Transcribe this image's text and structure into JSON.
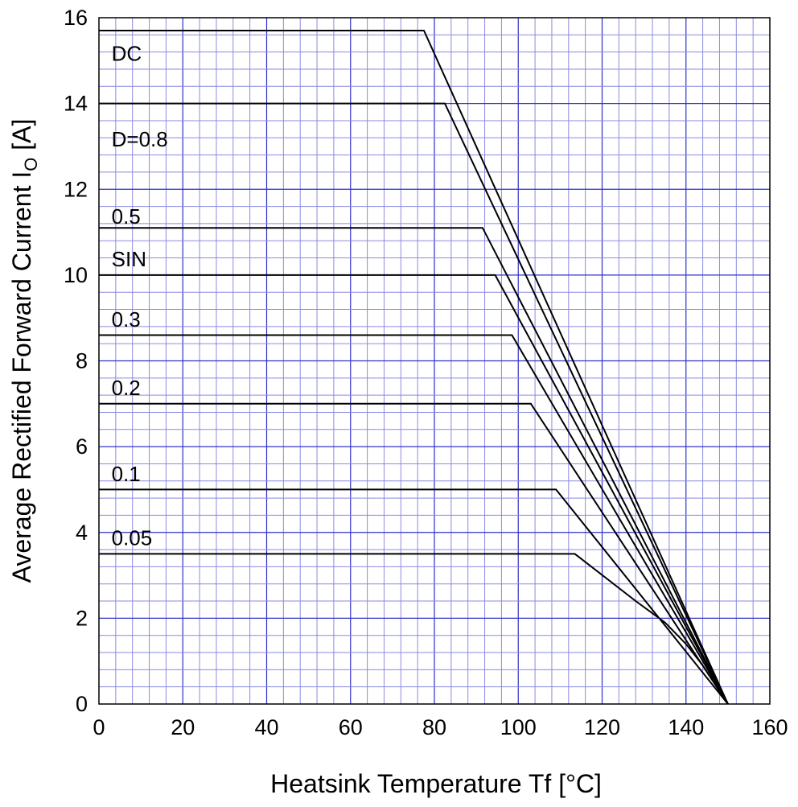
{
  "chart_data": {
    "type": "line",
    "xlabel": "Heatsink Temperature   Tf   [°C]",
    "ylabel_main": "Average Rectified Forward Current   I",
    "ylabel_sub": "O",
    "ylabel_unit": "  [A]",
    "xlim": [
      0,
      160
    ],
    "ylim": [
      0,
      16
    ],
    "x_ticks": [
      "0",
      "20",
      "40",
      "60",
      "80",
      "100",
      "120",
      "140",
      "160"
    ],
    "y_ticks": [
      "0",
      "2",
      "4",
      "6",
      "8",
      "10",
      "12",
      "14",
      "16"
    ],
    "grid": true,
    "series": [
      {
        "name": "DC",
        "label_x": 3,
        "label_y": 15.0,
        "points": [
          [
            0,
            15.7
          ],
          [
            77.5,
            15.7
          ],
          [
            150,
            0
          ]
        ]
      },
      {
        "name": "D=0.8",
        "label_x": 3,
        "label_y": 13.0,
        "points": [
          [
            0,
            14.0
          ],
          [
            82.5,
            14.0
          ],
          [
            150,
            0
          ]
        ]
      },
      {
        "name": "0.5",
        "label_x": 3,
        "label_y": 11.2,
        "points": [
          [
            0,
            11.1
          ],
          [
            91.5,
            11.1
          ],
          [
            150,
            0
          ]
        ]
      },
      {
        "name": "SIN",
        "label_x": 3,
        "label_y": 10.2,
        "points": [
          [
            0,
            10.0
          ],
          [
            94.5,
            10.0
          ],
          [
            150,
            0
          ]
        ]
      },
      {
        "name": "0.3",
        "label_x": 3,
        "label_y": 8.8,
        "points": [
          [
            0,
            8.6
          ],
          [
            98.5,
            8.6
          ],
          [
            150,
            0
          ]
        ]
      },
      {
        "name": "0.2",
        "label_x": 3,
        "label_y": 7.2,
        "points": [
          [
            0,
            7.0
          ],
          [
            103,
            7.0
          ],
          [
            150,
            0
          ]
        ]
      },
      {
        "name": "0.1",
        "label_x": 3,
        "label_y": 5.2,
        "points": [
          [
            0,
            5.0
          ],
          [
            109,
            5.0
          ],
          [
            150,
            0
          ]
        ]
      },
      {
        "name": "0.05",
        "label_x": 3,
        "label_y": 3.7,
        "points": [
          [
            0,
            3.5
          ],
          [
            113.5,
            3.5
          ],
          [
            128,
            2.4
          ],
          [
            135,
            1.9
          ],
          [
            140,
            1.4
          ],
          [
            144,
            0.9
          ],
          [
            150,
            0
          ]
        ]
      }
    ]
  }
}
